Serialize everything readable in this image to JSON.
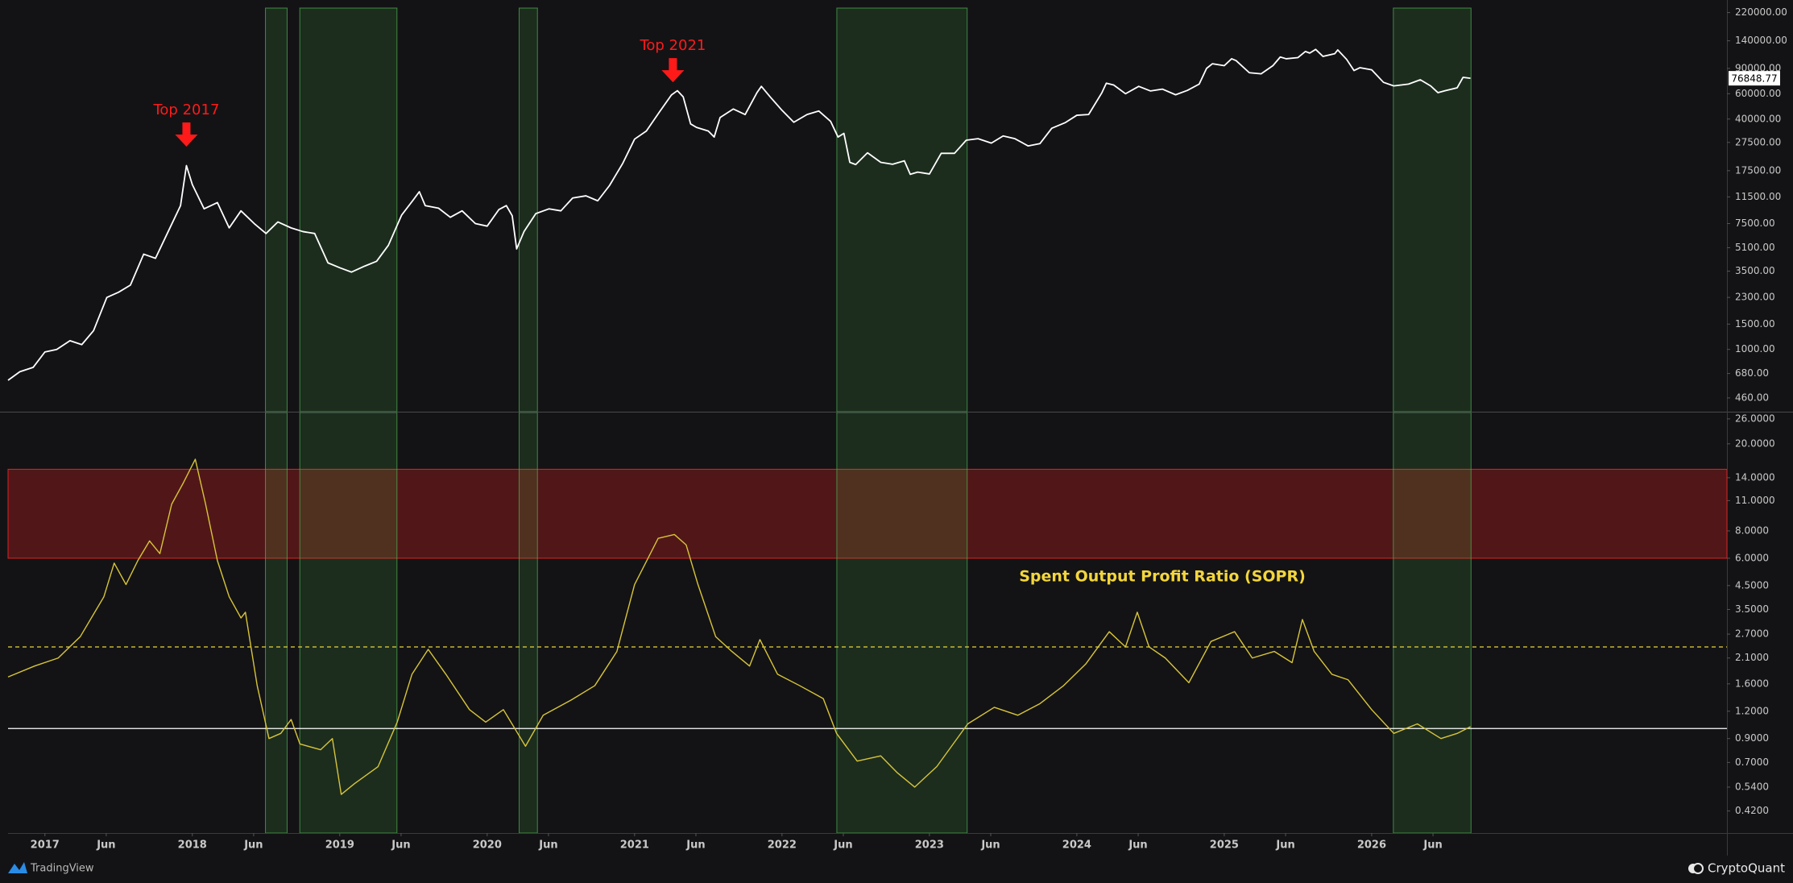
{
  "chart_data": [
    {
      "type": "line",
      "log_scale": true,
      "color": "#ffffff",
      "x": [
        2016.75,
        2016.83,
        2016.92,
        2017.0,
        2017.08,
        2017.17,
        2017.25,
        2017.33,
        2017.42,
        2017.5,
        2017.58,
        2017.67,
        2017.75,
        2017.83,
        2017.92,
        2017.96,
        2018.0,
        2018.08,
        2018.17,
        2018.25,
        2018.33,
        2018.42,
        2018.5,
        2018.58,
        2018.67,
        2018.75,
        2018.83,
        2018.92,
        2019.0,
        2019.08,
        2019.17,
        2019.25,
        2019.33,
        2019.42,
        2019.5,
        2019.54,
        2019.58,
        2019.67,
        2019.75,
        2019.83,
        2019.92,
        2020.0,
        2020.08,
        2020.13,
        2020.17,
        2020.2,
        2020.25,
        2020.33,
        2020.42,
        2020.5,
        2020.58,
        2020.67,
        2020.75,
        2020.83,
        2020.92,
        2021.0,
        2021.08,
        2021.17,
        2021.25,
        2021.29,
        2021.33,
        2021.38,
        2021.42,
        2021.5,
        2021.54,
        2021.58,
        2021.67,
        2021.75,
        2021.83,
        2021.86,
        2021.92,
        2022.0,
        2022.08,
        2022.17,
        2022.25,
        2022.33,
        2022.38,
        2022.42,
        2022.46,
        2022.5,
        2022.58,
        2022.67,
        2022.75,
        2022.83,
        2022.87,
        2022.92,
        2023.0,
        2023.08,
        2023.17,
        2023.25,
        2023.33,
        2023.42,
        2023.5,
        2023.58,
        2023.67,
        2023.75,
        2023.83,
        2023.92,
        2024.0,
        2024.08,
        2024.17,
        2024.2,
        2024.25,
        2024.33,
        2024.42,
        2024.5,
        2024.58,
        2024.67,
        2024.75,
        2024.83,
        2024.88,
        2024.92,
        2025.0,
        2025.05,
        2025.08,
        2025.17,
        2025.25,
        2025.33,
        2025.38,
        2025.42,
        2025.5,
        2025.55,
        2025.58,
        2025.62,
        2025.67,
        2025.75,
        2025.77,
        2025.83,
        2025.88,
        2025.92,
        2026.0,
        2026.08,
        2026.15,
        2026.25,
        2026.33,
        2026.4,
        2026.45,
        2026.5,
        2026.58,
        2026.62,
        2026.67
      ],
      "values": [
        610,
        700,
        750,
        960,
        1000,
        1150,
        1080,
        1350,
        2300,
        2500,
        2800,
        4600,
        4300,
        6400,
        10000,
        19000,
        14000,
        9500,
        10500,
        7000,
        9200,
        7500,
        6400,
        7700,
        7000,
        6600,
        6400,
        4000,
        3700,
        3450,
        3800,
        4100,
        5300,
        8600,
        11000,
        12500,
        10000,
        9600,
        8300,
        9200,
        7500,
        7200,
        9400,
        10000,
        8500,
        5000,
        6600,
        8800,
        9500,
        9200,
        11300,
        11700,
        10800,
        13800,
        19700,
        29000,
        33000,
        45000,
        58800,
        63000,
        57000,
        37000,
        35000,
        33000,
        30000,
        41000,
        47000,
        43000,
        61000,
        67500,
        57000,
        46000,
        38000,
        43000,
        45500,
        38500,
        30000,
        31800,
        20000,
        19300,
        23300,
        20000,
        19400,
        20500,
        16500,
        17100,
        16600,
        23100,
        23100,
        28500,
        29200,
        27200,
        30500,
        29200,
        26000,
        27000,
        34500,
        37700,
        42500,
        43000,
        61000,
        71000,
        69000,
        60000,
        67500,
        62700,
        64600,
        59000,
        63300,
        70000,
        90000,
        97000,
        94000,
        105000,
        102000,
        84000,
        82500,
        94000,
        108000,
        105000,
        107000,
        118000,
        115000,
        122000,
        109000,
        114000,
        121000,
        104000,
        87000,
        91000,
        88000,
        72000,
        68000,
        70000,
        75000,
        68000,
        61000,
        63000,
        66000,
        78000,
        76848.77
      ],
      "xlim": [
        2016.75,
        2028.41
      ],
      "ylim": [
        369,
        236500
      ],
      "yticks": [
        {
          "value": 220000,
          "label": "220000.00"
        },
        {
          "value": 140000,
          "label": "140000.00"
        },
        {
          "value": 90000,
          "label": "90000.00"
        },
        {
          "value": 60000,
          "label": "60000.00"
        },
        {
          "value": 40000,
          "label": "40000.00"
        },
        {
          "value": 27500,
          "label": "27500.00"
        },
        {
          "value": 17500,
          "label": "17500.00"
        },
        {
          "value": 11500,
          "label": "11500.00"
        },
        {
          "value": 7500,
          "label": "7500.00"
        },
        {
          "value": 5100,
          "label": "5100.00"
        },
        {
          "value": 3500,
          "label": "3500.00"
        },
        {
          "value": 2300,
          "label": "2300.00"
        },
        {
          "value": 1500,
          "label": "1500.00"
        },
        {
          "value": 1000,
          "label": "1000.00"
        },
        {
          "value": 680,
          "label": "680.00"
        },
        {
          "value": 460,
          "label": "460.00"
        }
      ],
      "annotations": [
        {
          "text": "Top 2017",
          "x": 2017.96,
          "y": 25700,
          "color": "#ff1a1a"
        },
        {
          "text": "Top 2021",
          "x": 2021.26,
          "y": 72100,
          "color": "#ff1a1a"
        }
      ]
    },
    {
      "type": "line",
      "log_scale": true,
      "title": "Spent Output Profit Ratio (SOPR)",
      "title_color": "#f3d63c",
      "color": "#d8c53a",
      "x": [
        2016.75,
        2016.93,
        2017.09,
        2017.24,
        2017.4,
        2017.47,
        2017.55,
        2017.63,
        2017.71,
        2017.78,
        2017.86,
        2017.94,
        2018.02,
        2018.09,
        2018.17,
        2018.25,
        2018.33,
        2018.36,
        2018.44,
        2018.52,
        2018.6,
        2018.67,
        2018.73,
        2018.87,
        2018.95,
        2019.01,
        2019.1,
        2019.26,
        2019.39,
        2019.49,
        2019.6,
        2019.72,
        2019.88,
        2019.99,
        2020.11,
        2020.26,
        2020.38,
        2020.57,
        2020.73,
        2020.88,
        2021.0,
        2021.16,
        2021.27,
        2021.35,
        2021.43,
        2021.55,
        2021.66,
        2021.78,
        2021.85,
        2021.97,
        2022.12,
        2022.28,
        2022.37,
        2022.51,
        2022.67,
        2022.78,
        2022.9,
        2023.05,
        2023.26,
        2023.44,
        2023.6,
        2023.75,
        2023.91,
        2024.06,
        2024.22,
        2024.33,
        2024.41,
        2024.49,
        2024.6,
        2024.76,
        2024.91,
        2025.07,
        2025.19,
        2025.34,
        2025.46,
        2025.53,
        2025.61,
        2025.73,
        2025.84,
        2026.0,
        2026.15,
        2026.31,
        2026.47,
        2026.58,
        2026.67
      ],
      "values": [
        1.72,
        1.93,
        2.1,
        2.63,
        4.0,
        5.7,
        4.55,
        5.85,
        7.2,
        6.3,
        10.6,
        13.3,
        17.0,
        10.6,
        5.85,
        4.0,
        3.2,
        3.4,
        1.57,
        0.9,
        0.95,
        1.1,
        0.85,
        0.8,
        0.9,
        0.5,
        0.56,
        0.67,
        1.07,
        1.77,
        2.3,
        1.77,
        1.22,
        1.07,
        1.22,
        0.83,
        1.15,
        1.35,
        1.57,
        2.25,
        4.55,
        7.4,
        7.7,
        6.9,
        4.55,
        2.63,
        2.25,
        1.93,
        2.55,
        1.77,
        1.57,
        1.37,
        0.95,
        0.71,
        0.75,
        0.63,
        0.54,
        0.67,
        1.05,
        1.25,
        1.15,
        1.3,
        1.57,
        1.97,
        2.77,
        2.36,
        3.4,
        2.36,
        2.1,
        1.62,
        2.5,
        2.77,
        2.1,
        2.25,
        2.0,
        3.15,
        2.25,
        1.77,
        1.67,
        1.22,
        0.95,
        1.05,
        0.9,
        0.95,
        1.02
      ],
      "xlim": [
        2016.75,
        2028.41
      ],
      "ylim": [
        0.333,
        27.8
      ],
      "yticks": [
        {
          "value": 26,
          "label": "26.0000"
        },
        {
          "value": 20,
          "label": "20.0000"
        },
        {
          "value": 14,
          "label": "14.0000"
        },
        {
          "value": 11,
          "label": "11.0000"
        },
        {
          "value": 8,
          "label": "8.0000"
        },
        {
          "value": 6,
          "label": "6.0000"
        },
        {
          "value": 4.5,
          "label": "4.5000"
        },
        {
          "value": 3.5,
          "label": "3.5000"
        },
        {
          "value": 2.7,
          "label": "2.7000"
        },
        {
          "value": 2.1,
          "label": "2.1000"
        },
        {
          "value": 1.6,
          "label": "1.6000"
        },
        {
          "value": 1.2,
          "label": "1.2000"
        },
        {
          "value": 0.9,
          "label": "0.9000"
        },
        {
          "value": 0.7,
          "label": "0.7000"
        },
        {
          "value": 0.54,
          "label": "0.5400"
        },
        {
          "value": 0.42,
          "label": "0.4200"
        }
      ],
      "xticks": [
        2017,
        {
          "value": 2017.416,
          "label": "Jun"
        },
        2018,
        {
          "value": 2018.416,
          "label": "Jun"
        },
        2019,
        {
          "value": 2019.416,
          "label": "Jun"
        },
        2020,
        {
          "value": 2020.416,
          "label": "Jun"
        },
        2021,
        {
          "value": 2021.416,
          "label": "Jun"
        },
        2022,
        {
          "value": 2022.416,
          "label": "Jun"
        },
        2023,
        {
          "value": 2023.416,
          "label": "Jun"
        },
        2024,
        {
          "value": 2024.416,
          "label": "Jun"
        },
        2025,
        {
          "value": 2025.416,
          "label": "Jun"
        },
        2026,
        {
          "value": 2026.416,
          "label": "Jun"
        }
      ],
      "bands": [
        {
          "from": 6,
          "to": 15.3,
          "color": "#e02020"
        }
      ],
      "reference_lines": [
        {
          "value": 1,
          "color": "#ffffff",
          "dashed": false
        },
        {
          "value": 2.36,
          "color": "#e8d43a",
          "dashed": true
        }
      ]
    }
  ],
  "highlight_ranges": [
    [
      2018.496,
      2018.643
    ],
    [
      2018.729,
      2019.388
    ],
    [
      2020.217,
      2020.341
    ],
    [
      2022.372,
      2023.256
    ],
    [
      2026.147,
      2026.674
    ]
  ],
  "highlight_color": "#4caf50",
  "footer": {
    "left": "TradingView",
    "right": "CryptoQuant"
  }
}
